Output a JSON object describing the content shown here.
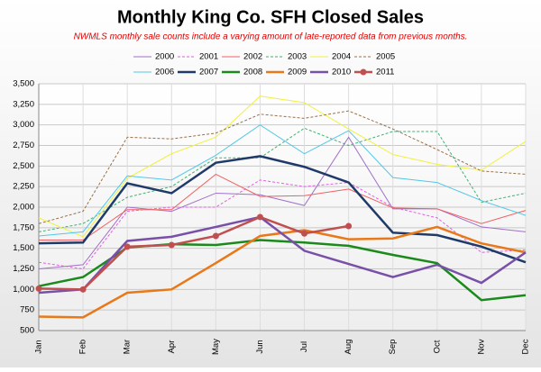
{
  "chart_data": {
    "type": "line",
    "title": "Monthly King Co. SFH Closed Sales",
    "subtitle": "NWMLS monthly sale counts include a varying amount of late-reported data from previous months.",
    "categories": [
      "Jan",
      "Feb",
      "Mar",
      "Apr",
      "May",
      "Jun",
      "Jul",
      "Aug",
      "Sep",
      "Oct",
      "Nov",
      "Dec"
    ],
    "ylim": [
      500,
      3500
    ],
    "yticks": [
      {
        "value": 500,
        "label": "500"
      },
      {
        "value": 750,
        "label": "750"
      },
      {
        "value": 1000,
        "label": "1,000"
      },
      {
        "value": 1250,
        "label": "1,250"
      },
      {
        "value": 1500,
        "label": "1,500"
      },
      {
        "value": 1750,
        "label": "1,750"
      },
      {
        "value": 2000,
        "label": "2,000"
      },
      {
        "value": 2250,
        "label": "2,250"
      },
      {
        "value": 2500,
        "label": "2,500"
      },
      {
        "value": 2750,
        "label": "2,750"
      },
      {
        "value": 3000,
        "label": "3,000"
      },
      {
        "value": 3250,
        "label": "3,250"
      },
      {
        "value": 3500,
        "label": "3,500"
      }
    ],
    "grid": true,
    "legend": "top",
    "series": [
      {
        "name": "2000",
        "color": "#a070c8",
        "line_style": "solid",
        "linewidth": 1,
        "values": [
          1250,
          1300,
          2000,
          1950,
          2170,
          2150,
          2020,
          2850,
          1980,
          1980,
          1760,
          1700
        ]
      },
      {
        "name": "2001",
        "color": "#e060e0",
        "line_style": "dashed",
        "linewidth": 1,
        "values": [
          1330,
          1250,
          1950,
          2000,
          2000,
          2330,
          2250,
          2300,
          2000,
          1870,
          1450,
          1480
        ]
      },
      {
        "name": "2002",
        "color": "#f06060",
        "line_style": "solid",
        "linewidth": 1,
        "values": [
          1600,
          1600,
          1970,
          1970,
          2400,
          2130,
          2140,
          2220,
          1990,
          1980,
          1800,
          1960
        ]
      },
      {
        "name": "2003",
        "color": "#40b070",
        "line_style": "dashed",
        "linewidth": 1,
        "values": [
          1700,
          1800,
          2120,
          2250,
          2600,
          2600,
          2960,
          2750,
          2920,
          2920,
          2060,
          2170
        ]
      },
      {
        "name": "2004",
        "color": "#f0f040",
        "line_style": "solid",
        "linewidth": 1,
        "values": [
          1870,
          1640,
          2350,
          2650,
          2850,
          3350,
          3270,
          2950,
          2640,
          2520,
          2450,
          2800
        ]
      },
      {
        "name": "2005",
        "color": "#9a7048",
        "line_style": "dashed",
        "linewidth": 1,
        "values": [
          1800,
          1950,
          2850,
          2830,
          2900,
          3130,
          3080,
          3170,
          2950,
          2700,
          2440,
          2400
        ]
      },
      {
        "name": "2006",
        "color": "#50c8e8",
        "line_style": "solid",
        "linewidth": 1,
        "values": [
          1650,
          1700,
          2380,
          2330,
          2630,
          3000,
          2650,
          2930,
          2360,
          2300,
          2080,
          1900
        ]
      },
      {
        "name": "2007",
        "color": "#1f3a68",
        "line_style": "solid",
        "linewidth": 2.5,
        "values": [
          1560,
          1570,
          2290,
          2170,
          2540,
          2620,
          2490,
          2300,
          1690,
          1660,
          1520,
          1330
        ]
      },
      {
        "name": "2008",
        "color": "#1a8a1a",
        "line_style": "solid",
        "linewidth": 2.5,
        "values": [
          1040,
          1150,
          1510,
          1550,
          1540,
          1600,
          1570,
          1530,
          1420,
          1320,
          870,
          930
        ]
      },
      {
        "name": "2009",
        "color": "#e87818",
        "line_style": "solid",
        "linewidth": 2.5,
        "values": [
          670,
          660,
          960,
          1000,
          1320,
          1650,
          1720,
          1610,
          1620,
          1760,
          1560,
          1450
        ]
      },
      {
        "name": "2010",
        "color": "#7850a8",
        "line_style": "solid",
        "linewidth": 2.5,
        "values": [
          960,
          1000,
          1590,
          1640,
          1760,
          1880,
          1470,
          1310,
          1150,
          1300,
          1080,
          1450
        ]
      },
      {
        "name": "2011",
        "color": "#c05050",
        "line_style": "solid",
        "linewidth": 2.5,
        "marker": "circle",
        "values": [
          1010,
          1000,
          1520,
          1540,
          1650,
          1880,
          1680,
          1770,
          null,
          null,
          null,
          null
        ]
      }
    ]
  }
}
